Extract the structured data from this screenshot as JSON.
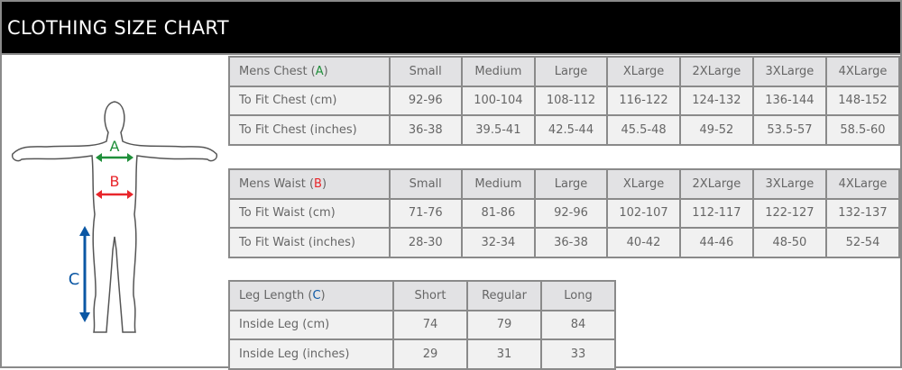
{
  "title": "CLOTHING SIZE CHART",
  "colors": {
    "A": "#1f8f3a",
    "B": "#e8262b",
    "C": "#0b57a4"
  },
  "figure": {
    "a": "A",
    "b": "B",
    "c": "C"
  },
  "chest": {
    "header": {
      "label": "Mens Chest (",
      "letter": "A",
      "close": ")"
    },
    "sizes": [
      "Small",
      "Medium",
      "Large",
      "XLarge",
      "2XLarge",
      "3XLarge",
      "4XLarge"
    ],
    "rows": [
      {
        "label": "To Fit Chest (cm)",
        "values": [
          "92-96",
          "100-104",
          "108-112",
          "116-122",
          "124-132",
          "136-144",
          "148-152"
        ]
      },
      {
        "label": "To Fit Chest (inches)",
        "values": [
          "36-38",
          "39.5-41",
          "42.5-44",
          "45.5-48",
          "49-52",
          "53.5-57",
          "58.5-60"
        ]
      }
    ]
  },
  "waist": {
    "header": {
      "label": "Mens Waist (",
      "letter": "B",
      "close": ")"
    },
    "sizes": [
      "Small",
      "Medium",
      "Large",
      "XLarge",
      "2XLarge",
      "3XLarge",
      "4XLarge"
    ],
    "rows": [
      {
        "label": "To Fit Waist (cm)",
        "values": [
          "71-76",
          "81-86",
          "92-96",
          "102-107",
          "112-117",
          "122-127",
          "132-137"
        ]
      },
      {
        "label": "To Fit Waist (inches)",
        "values": [
          "28-30",
          "32-34",
          "36-38",
          "40-42",
          "44-46",
          "48-50",
          "52-54"
        ]
      }
    ]
  },
  "leg": {
    "header": {
      "label": "Leg Length (",
      "letter": "C",
      "close": ")"
    },
    "sizes": [
      "Short",
      "Regular",
      "Long"
    ],
    "rows": [
      {
        "label": "Inside Leg (cm)",
        "values": [
          "74",
          "79",
          "84"
        ]
      },
      {
        "label": "Inside Leg (inches)",
        "values": [
          "29",
          "31",
          "33"
        ]
      }
    ]
  }
}
